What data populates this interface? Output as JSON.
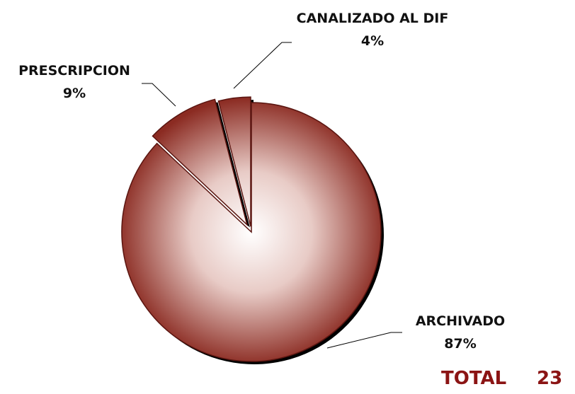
{
  "chart_data": {
    "type": "pie",
    "categories": [
      "ARCHIVADO",
      "PRESCRIPCION",
      "CANALIZADO  AL DIF"
    ],
    "values": [
      87,
      9,
      4
    ],
    "value_labels": [
      "87%",
      "9%",
      "4%"
    ],
    "color": "#8b2b22",
    "total_label": "TOTAL",
    "total": 23
  }
}
